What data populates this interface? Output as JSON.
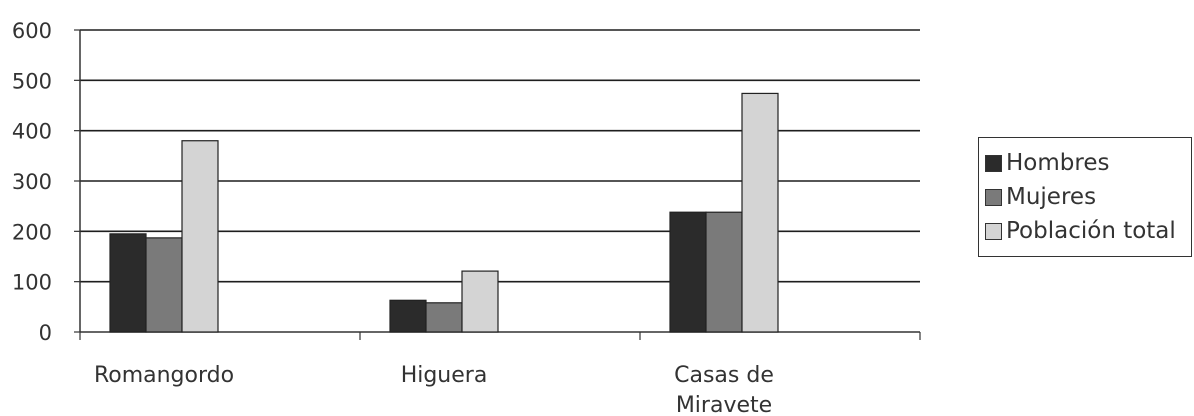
{
  "chart_data": {
    "type": "bar",
    "categories": [
      "Romangordo",
      "Higuera",
      "Casas de Miravete"
    ],
    "category_label_lines": [
      [
        "Romangordo"
      ],
      [
        "Higuera"
      ],
      [
        "Casas de",
        "Miravete"
      ]
    ],
    "series": [
      {
        "name": "Hombres",
        "values": [
          195,
          63,
          238
        ],
        "color": "#2b2b2b"
      },
      {
        "name": "Mujeres",
        "values": [
          187,
          58,
          238
        ],
        "color": "#7a7a7a"
      },
      {
        "name": "Población total",
        "values": [
          380,
          121,
          474
        ],
        "color": "#d4d4d4"
      }
    ],
    "y_ticks": [
      0,
      100,
      200,
      300,
      400,
      500,
      600
    ],
    "ylim": [
      0,
      600
    ],
    "xlabel": "",
    "ylabel": "",
    "grid": true,
    "legend_position": "right"
  }
}
